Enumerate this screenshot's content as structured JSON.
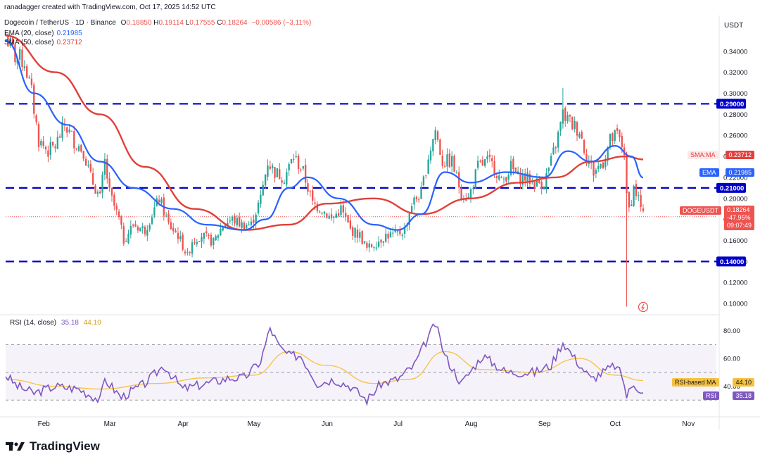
{
  "header": {
    "credit": "ranadagger created with TradingView.com, Oct 17, 2025 14:52 UTC",
    "symbol": "Dogecoin / TetherUS · 1D · Binance",
    "ohlc": {
      "open_label": "O",
      "open": "0.18850",
      "high_label": "H",
      "high": "0.19114",
      "low_label": "L",
      "low": "0.17555",
      "close_label": "C",
      "close": "0.18264",
      "change": "−0.00586 (−3.11%)"
    },
    "legend": [
      {
        "name": "EMA (20, close)",
        "value": "0.21985",
        "color": "#2962ff"
      },
      {
        "name": "SMA (50, close)",
        "value": "0.23712",
        "color": "#e53e3e"
      }
    ],
    "currency": "USDT"
  },
  "colors": {
    "up": "#26a69a",
    "down": "#ef5350",
    "ema": "#2962ff",
    "sma": "#e0403a",
    "level": "#0000c8",
    "rsi": "#7e57c2",
    "rsi_ma": "#f5c242"
  },
  "rsi_panel": {
    "legend_name": "RSI (14, close)",
    "value": "35.18",
    "ma_value": "44.10",
    "ma_label": "RSI-based MA",
    "rsi_label": "RSI"
  },
  "price_tags": {
    "sma": {
      "name": "SMA:MA",
      "value": "0.23712"
    },
    "ema": {
      "name": "EMA",
      "value": "0.21985"
    },
    "last": {
      "name": "DOGEUSDT",
      "value": "0.18264",
      "pct": "-47.95%",
      "timer": "09:07:49"
    }
  },
  "brand": {
    "text": "TradingView"
  },
  "chart_data": [
    {
      "type": "candlestick",
      "title": "Dogecoin / TetherUS · 1D · Binance",
      "ylim": [
        0.09,
        0.37
      ],
      "x_ticks": [
        "Feb",
        "Mar",
        "Apr",
        "May",
        "Jun",
        "Jul",
        "Aug",
        "Sep",
        "Oct",
        "Nov"
      ],
      "y_ticks": [
        "0.34000",
        "0.32000",
        "0.30000",
        "0.28000",
        "0.26000",
        "0.24000",
        "0.22000",
        "0.20000",
        "0.18000",
        "0.16000",
        "0.14000",
        "0.12000",
        "0.10000"
      ],
      "horizontal_levels": [
        {
          "value": 0.29,
          "label": "0.29000"
        },
        {
          "value": 0.21,
          "label": "0.21000"
        },
        {
          "value": 0.14,
          "label": "0.14000"
        }
      ],
      "price_path": [
        [
          "2025-01-20",
          0.355
        ],
        [
          "2025-01-24",
          0.335
        ],
        [
          "2025-01-28",
          0.33
        ],
        [
          "2025-01-31",
          0.3
        ],
        [
          "2025-02-03",
          0.255
        ],
        [
          "2025-02-07",
          0.245
        ],
        [
          "2025-02-10",
          0.25
        ],
        [
          "2025-02-14",
          0.27
        ],
        [
          "2025-02-18",
          0.255
        ],
        [
          "2025-02-22",
          0.245
        ],
        [
          "2025-02-25",
          0.22
        ],
        [
          "2025-03-01",
          0.2
        ],
        [
          "2025-03-03",
          0.235
        ],
        [
          "2025-03-05",
          0.205
        ],
        [
          "2025-03-09",
          0.18
        ],
        [
          "2025-03-11",
          0.16
        ],
        [
          "2025-03-15",
          0.175
        ],
        [
          "2025-03-20",
          0.17
        ],
        [
          "2025-03-26",
          0.2
        ],
        [
          "2025-03-30",
          0.175
        ],
        [
          "2025-04-03",
          0.165
        ],
        [
          "2025-04-07",
          0.145
        ],
        [
          "2025-04-09",
          0.16
        ],
        [
          "2025-04-13",
          0.165
        ],
        [
          "2025-04-18",
          0.158
        ],
        [
          "2025-04-22",
          0.175
        ],
        [
          "2025-04-26",
          0.18
        ],
        [
          "2025-04-30",
          0.175
        ],
        [
          "2025-05-04",
          0.175
        ],
        [
          "2025-05-08",
          0.2
        ],
        [
          "2025-05-11",
          0.235
        ],
        [
          "2025-05-14",
          0.225
        ],
        [
          "2025-05-18",
          0.22
        ],
        [
          "2025-05-22",
          0.24
        ],
        [
          "2025-05-26",
          0.225
        ],
        [
          "2025-05-30",
          0.195
        ],
        [
          "2025-06-03",
          0.19
        ],
        [
          "2025-06-07",
          0.18
        ],
        [
          "2025-06-11",
          0.19
        ],
        [
          "2025-06-15",
          0.17
        ],
        [
          "2025-06-19",
          0.165
        ],
        [
          "2025-06-22",
          0.152
        ],
        [
          "2025-06-26",
          0.158
        ],
        [
          "2025-06-30",
          0.165
        ],
        [
          "2025-07-04",
          0.165
        ],
        [
          "2025-07-08",
          0.17
        ],
        [
          "2025-07-11",
          0.195
        ],
        [
          "2025-07-15",
          0.205
        ],
        [
          "2025-07-18",
          0.24
        ],
        [
          "2025-07-21",
          0.265
        ],
        [
          "2025-07-24",
          0.235
        ],
        [
          "2025-07-28",
          0.235
        ],
        [
          "2025-08-01",
          0.205
        ],
        [
          "2025-08-04",
          0.2
        ],
        [
          "2025-08-08",
          0.23
        ],
        [
          "2025-08-12",
          0.235
        ],
        [
          "2025-08-15",
          0.23
        ],
        [
          "2025-08-18",
          0.215
        ],
        [
          "2025-08-22",
          0.23
        ],
        [
          "2025-08-25",
          0.22
        ],
        [
          "2025-08-28",
          0.22
        ],
        [
          "2025-09-01",
          0.215
        ],
        [
          "2025-09-05",
          0.215
        ],
        [
          "2025-09-08",
          0.235
        ],
        [
          "2025-09-11",
          0.26
        ],
        [
          "2025-09-13",
          0.28
        ],
        [
          "2025-09-17",
          0.27
        ],
        [
          "2025-09-20",
          0.265
        ],
        [
          "2025-09-23",
          0.24
        ],
        [
          "2025-09-26",
          0.225
        ],
        [
          "2025-09-30",
          0.235
        ],
        [
          "2025-10-03",
          0.255
        ],
        [
          "2025-10-06",
          0.26
        ],
        [
          "2025-10-09",
          0.245
        ],
        [
          "2025-10-10",
          0.2
        ],
        [
          "2025-10-11",
          0.19
        ],
        [
          "2025-10-13",
          0.21
        ],
        [
          "2025-10-15",
          0.2
        ],
        [
          "2025-10-17",
          0.18264
        ]
      ],
      "wick_extremes": [
        {
          "date": "2025-09-13",
          "high": 0.305
        },
        {
          "date": "2025-10-10",
          "low": 0.097
        }
      ],
      "ema20_path": [
        [
          "2025-01-20",
          0.35
        ],
        [
          "2025-02-01",
          0.3
        ],
        [
          "2025-02-15",
          0.27
        ],
        [
          "2025-03-01",
          0.235
        ],
        [
          "2025-03-15",
          0.21
        ],
        [
          "2025-04-01",
          0.19
        ],
        [
          "2025-04-15",
          0.175
        ],
        [
          "2025-05-01",
          0.17
        ],
        [
          "2025-05-10",
          0.18
        ],
        [
          "2025-05-20",
          0.21
        ],
        [
          "2025-05-28",
          0.22
        ],
        [
          "2025-06-10",
          0.2
        ],
        [
          "2025-06-25",
          0.175
        ],
        [
          "2025-07-05",
          0.17
        ],
        [
          "2025-07-15",
          0.185
        ],
        [
          "2025-07-25",
          0.225
        ],
        [
          "2025-08-05",
          0.215
        ],
        [
          "2025-08-20",
          0.225
        ],
        [
          "2025-09-05",
          0.22
        ],
        [
          "2025-09-15",
          0.245
        ],
        [
          "2025-09-25",
          0.235
        ],
        [
          "2025-10-05",
          0.25
        ],
        [
          "2025-10-12",
          0.24
        ],
        [
          "2025-10-17",
          0.21985
        ]
      ],
      "sma50_path": [
        [
          "2025-01-20",
          0.355
        ],
        [
          "2025-02-10",
          0.32
        ],
        [
          "2025-03-01",
          0.28
        ],
        [
          "2025-03-20",
          0.23
        ],
        [
          "2025-04-10",
          0.19
        ],
        [
          "2025-05-01",
          0.17
        ],
        [
          "2025-05-20",
          0.175
        ],
        [
          "2025-06-05",
          0.195
        ],
        [
          "2025-06-25",
          0.2
        ],
        [
          "2025-07-15",
          0.185
        ],
        [
          "2025-08-05",
          0.2
        ],
        [
          "2025-08-25",
          0.215
        ],
        [
          "2025-09-10",
          0.22
        ],
        [
          "2025-09-25",
          0.235
        ],
        [
          "2025-10-10",
          0.24
        ],
        [
          "2025-10-17",
          0.23712
        ]
      ]
    },
    {
      "type": "line",
      "title": "RSI (14, close)",
      "ylim": [
        20,
        90
      ],
      "y_ticks": [
        "80.00",
        "60.00",
        "40.00"
      ],
      "bands": {
        "upper": 70,
        "middle": 50,
        "lower": 30
      },
      "rsi_path": [
        [
          "2025-01-20",
          48
        ],
        [
          "2025-01-25",
          40
        ],
        [
          "2025-02-01",
          35
        ],
        [
          "2025-02-10",
          40
        ],
        [
          "2025-02-20",
          38
        ],
        [
          "2025-03-01",
          30
        ],
        [
          "2025-03-03",
          45
        ],
        [
          "2025-03-10",
          32
        ],
        [
          "2025-03-20",
          42
        ],
        [
          "2025-03-28",
          55
        ],
        [
          "2025-04-05",
          38
        ],
        [
          "2025-04-15",
          42
        ],
        [
          "2025-04-25",
          46
        ],
        [
          "2025-05-01",
          46
        ],
        [
          "2025-05-08",
          58
        ],
        [
          "2025-05-12",
          82
        ],
        [
          "2025-05-16",
          68
        ],
        [
          "2025-05-20",
          62
        ],
        [
          "2025-05-25",
          62
        ],
        [
          "2025-06-01",
          42
        ],
        [
          "2025-06-08",
          45
        ],
        [
          "2025-06-15",
          40
        ],
        [
          "2025-06-22",
          30
        ],
        [
          "2025-06-28",
          42
        ],
        [
          "2025-07-05",
          45
        ],
        [
          "2025-07-12",
          55
        ],
        [
          "2025-07-17",
          72
        ],
        [
          "2025-07-21",
          85
        ],
        [
          "2025-07-25",
          62
        ],
        [
          "2025-08-01",
          42
        ],
        [
          "2025-08-10",
          62
        ],
        [
          "2025-08-20",
          50
        ],
        [
          "2025-09-01",
          50
        ],
        [
          "2025-09-08",
          55
        ],
        [
          "2025-09-13",
          72
        ],
        [
          "2025-09-18",
          60
        ],
        [
          "2025-09-25",
          45
        ],
        [
          "2025-10-05",
          55
        ],
        [
          "2025-10-08",
          48
        ],
        [
          "2025-10-10",
          33
        ],
        [
          "2025-10-13",
          42
        ],
        [
          "2025-10-17",
          35.18
        ]
      ],
      "rsi_ma_path": [
        [
          "2025-01-20",
          45
        ],
        [
          "2025-02-10",
          40
        ],
        [
          "2025-03-01",
          38
        ],
        [
          "2025-03-25",
          42
        ],
        [
          "2025-04-15",
          46
        ],
        [
          "2025-05-05",
          48
        ],
        [
          "2025-05-20",
          65
        ],
        [
          "2025-06-05",
          55
        ],
        [
          "2025-06-25",
          42
        ],
        [
          "2025-07-10",
          45
        ],
        [
          "2025-07-25",
          65
        ],
        [
          "2025-08-10",
          52
        ],
        [
          "2025-09-01",
          50
        ],
        [
          "2025-09-20",
          60
        ],
        [
          "2025-10-05",
          48
        ],
        [
          "2025-10-17",
          44.1
        ]
      ]
    }
  ]
}
